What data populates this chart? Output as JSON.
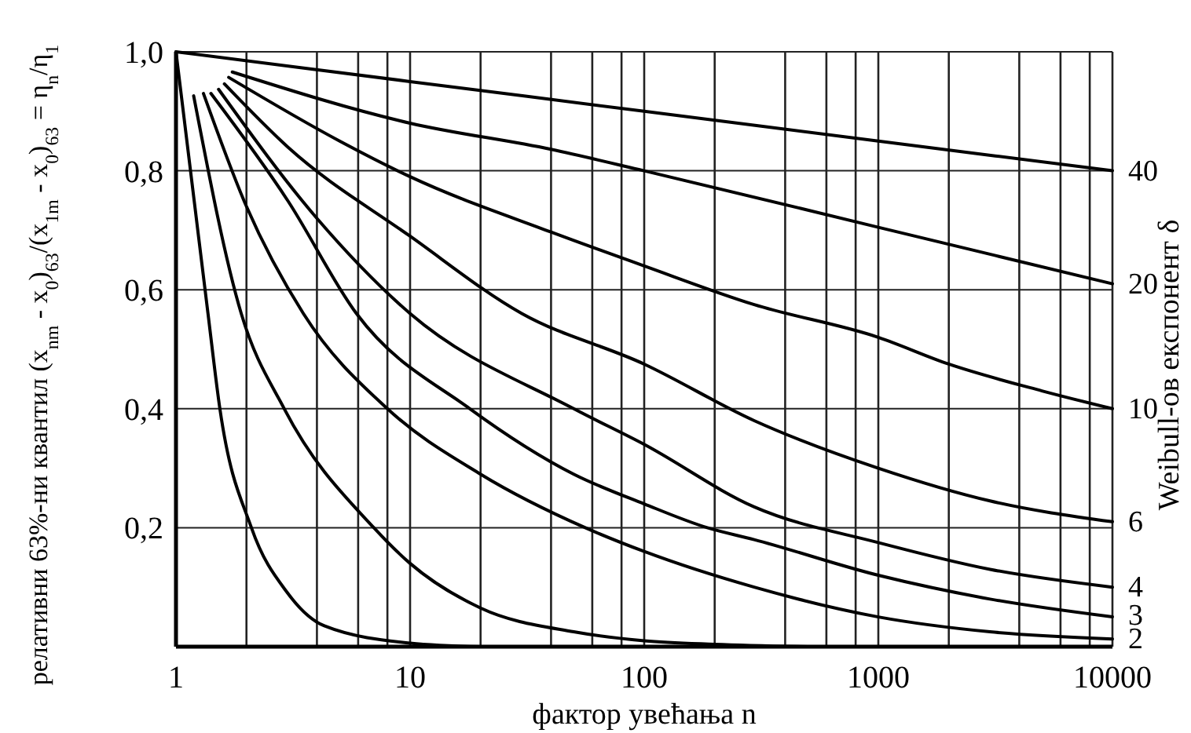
{
  "chart_data": {
    "type": "line",
    "xlabel": "фактор увећања n",
    "ylabel": "релативни 63%-ни квантил (x$_{nm}$ - x$_{0}$)$_{63}$/(x$_{1m}$ - x$_{0}$)$_{63}$ = η$_{n}$/η$_{1}$",
    "y2label": "Weibull-ов експонент δ",
    "log": "x",
    "xlim": [
      1,
      10000
    ],
    "ylim": [
      0,
      1
    ],
    "xticks": [
      1,
      {
        "value": 2,
        "label": null
      },
      {
        "value": 4,
        "label": null
      },
      {
        "value": 6,
        "label": null
      },
      {
        "value": 8,
        "label": null
      },
      10,
      {
        "value": 20,
        "label": null
      },
      {
        "value": 40,
        "label": null
      },
      {
        "value": 60,
        "label": null
      },
      {
        "value": 80,
        "label": null
      },
      100,
      {
        "value": 200,
        "label": null
      },
      {
        "value": 400,
        "label": null
      },
      {
        "value": 600,
        "label": null
      },
      {
        "value": 800,
        "label": null
      },
      1000,
      {
        "value": 2000,
        "label": null
      },
      {
        "value": 4000,
        "label": null
      },
      {
        "value": 6000,
        "label": null
      },
      {
        "value": 8000,
        "label": null
      },
      10000
    ],
    "yticks": [
      {
        "value": 0,
        "label": null
      },
      {
        "value": 0.2,
        "label": "0,2"
      },
      {
        "value": 0.4,
        "label": "0,4"
      },
      {
        "value": 0.6,
        "label": "0,6"
      },
      {
        "value": 0.8,
        "label": "0,8"
      },
      {
        "value": 1,
        "label": "1,0"
      }
    ],
    "grid": true,
    "legend": false,
    "marker": "none",
    "line_style": "solid",
    "series": [
      {
        "color": "#000000",
        "x": [
          1,
          1.2,
          1.37,
          1.54,
          2.1,
          3,
          4.3,
          10,
          20
        ],
        "values": [
          1,
          0.745,
          0.56,
          0.4,
          0.2,
          0.09,
          0.035,
          0.006,
          0
        ]
      },
      {
        "color": "#000000",
        "x": [
          1.19,
          1.9,
          2.9,
          7,
          10,
          20,
          50,
          100,
          200,
          500
        ],
        "values": [
          0.926,
          0.56,
          0.4,
          0.2,
          0.14,
          0.065,
          0.025,
          0.01,
          0.004,
          0
        ]
      },
      {
        "name": "2",
        "color": "#000000",
        "x": [
          1.31,
          2,
          3.5,
          8,
          20,
          56,
          100,
          295,
          1000,
          3000,
          10000
        ],
        "values": [
          0.93,
          0.74,
          0.56,
          0.4,
          0.29,
          0.2,
          0.16,
          0.1,
          0.05,
          0.025,
          0.013
        ]
      },
      {
        "name": "3",
        "color": "#000000",
        "x": [
          1.41,
          3,
          5.9,
          18,
          50,
          100,
          186,
          295,
          1000,
          3000,
          10000
        ],
        "values": [
          0.93,
          0.75,
          0.56,
          0.4,
          0.29,
          0.24,
          0.2,
          0.18,
          0.12,
          0.08,
          0.05
        ]
      },
      {
        "name": "4",
        "color": "#000000",
        "x": [
          1.52,
          4,
          10,
          50,
          100,
          295,
          1000,
          3000,
          10000
        ],
        "values": [
          0.937,
          0.72,
          0.56,
          0.4,
          0.34,
          0.235,
          0.175,
          0.13,
          0.1
        ]
      },
      {
        "name": "6",
        "color": "#000000",
        "x": [
          1.61,
          3,
          10,
          30,
          100,
          295,
          1000,
          3000,
          10000
        ],
        "values": [
          0.946,
          0.84,
          0.69,
          0.56,
          0.475,
          0.38,
          0.3,
          0.245,
          0.21
        ]
      },
      {
        "name": "10",
        "color": "#000000",
        "x": [
          1.68,
          5,
          10,
          40,
          100,
          295,
          1000,
          2000,
          5000,
          10000
        ],
        "values": [
          0.957,
          0.85,
          0.79,
          0.697,
          0.64,
          0.575,
          0.52,
          0.475,
          0.43,
          0.4
        ]
      },
      {
        "name": "20",
        "color": "#000000",
        "x": [
          1.74,
          10,
          40,
          100,
          1000,
          10000
        ],
        "values": [
          0.966,
          0.88,
          0.836,
          0.8,
          0.705,
          0.61
        ]
      },
      {
        "name": "40",
        "color": "#000000",
        "x": [
          1,
          10,
          100,
          1000,
          10000
        ],
        "values": [
          1,
          0.95,
          0.9,
          0.85,
          0.8
        ]
      }
    ]
  }
}
